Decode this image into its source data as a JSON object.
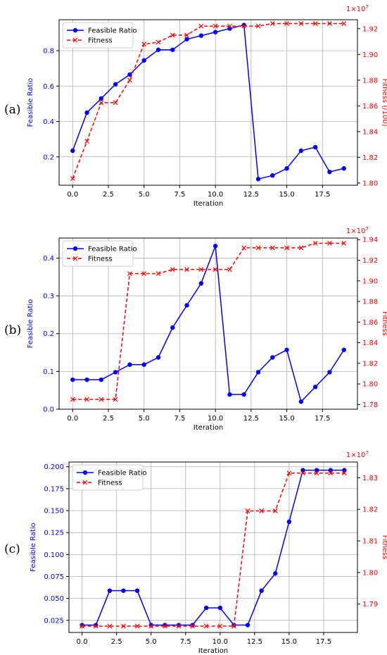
{
  "colors": {
    "left": "#0000ff",
    "right": "#ff0000",
    "grid": "#b0b0b0",
    "axis": "#000000"
  },
  "chart_data": [
    {
      "type": "line",
      "panel_label": "(a)",
      "xlabel": "Iteration",
      "ylabel_left": "Feasible Ratio",
      "ylabel_right": "Fitness (/100)",
      "right_axis_multiplier": "1e7",
      "x": [
        0,
        1,
        2,
        3,
        4,
        5,
        6,
        7,
        8,
        9,
        10,
        11,
        12,
        13,
        14,
        15,
        16,
        17,
        18,
        19
      ],
      "xlim": [
        -0.95,
        19.95
      ],
      "x_ticks": [
        0.0,
        2.5,
        5.0,
        7.5,
        10.0,
        12.5,
        15.0,
        17.5
      ],
      "x_tick_labels": [
        "0.0",
        "2.5",
        "5.0",
        "7.5",
        "10.0",
        "12.5",
        "15.0",
        "17.5"
      ],
      "left_ylim": [
        0.04,
        0.975
      ],
      "left_ticks": [
        0.2,
        0.4,
        0.6,
        0.8
      ],
      "left_tick_labels": [
        "0.2",
        "0.4",
        "0.6",
        "0.8"
      ],
      "right_ylim": [
        1.7983,
        1.927
      ],
      "right_ticks": [
        1.8,
        1.82,
        1.84,
        1.86,
        1.88,
        1.9,
        1.92
      ],
      "right_tick_labels": [
        "1.80",
        "1.82",
        "1.84",
        "1.86",
        "1.88",
        "1.90",
        "1.92"
      ],
      "legend": [
        "Feasible Ratio",
        "Fitness"
      ],
      "legend_position": "top-left",
      "grid": true,
      "series": [
        {
          "name": "Feasible Ratio",
          "axis": "left",
          "style": "solid",
          "marker": "circle",
          "values": [
            0.235,
            0.45,
            0.53,
            0.61,
            0.665,
            0.745,
            0.805,
            0.805,
            0.865,
            0.885,
            0.905,
            0.925,
            0.945,
            0.075,
            0.095,
            0.135,
            0.235,
            0.255,
            0.115,
            0.135
          ]
        },
        {
          "name": "Fitness",
          "axis": "right",
          "style": "dashed",
          "marker": "x",
          "values": [
            1.8035,
            1.8325,
            1.8625,
            1.8625,
            1.88,
            1.908,
            1.9095,
            1.915,
            1.915,
            1.922,
            1.922,
            1.922,
            1.922,
            1.922,
            1.924,
            1.924,
            1.924,
            1.924,
            1.924,
            1.924
          ]
        }
      ]
    },
    {
      "type": "line",
      "panel_label": "(b)",
      "xlabel": "Iteration",
      "ylabel_left": "Feasible Ratio",
      "ylabel_right": "Fitness",
      "right_axis_multiplier": "1e7",
      "x": [
        0,
        1,
        2,
        3,
        4,
        5,
        6,
        7,
        8,
        9,
        10,
        11,
        12,
        13,
        14,
        15,
        16,
        17,
        18,
        19
      ],
      "xlim": [
        -0.95,
        19.95
      ],
      "x_ticks": [
        0.0,
        2.5,
        5.0,
        7.5,
        10.0,
        12.5,
        15.0,
        17.5
      ],
      "x_tick_labels": [
        "0.0",
        "2.5",
        "5.0",
        "7.5",
        "10.0",
        "12.5",
        "15.0",
        "17.5"
      ],
      "left_ylim": [
        0.0,
        0.453
      ],
      "left_ticks": [
        0.0,
        0.1,
        0.2,
        0.3,
        0.4
      ],
      "left_tick_labels": [
        "0.0",
        "0.1",
        "0.2",
        "0.3",
        "0.4"
      ],
      "right_ylim": [
        1.7755,
        1.9415
      ],
      "right_ticks": [
        1.78,
        1.8,
        1.82,
        1.84,
        1.86,
        1.88,
        1.9,
        1.92,
        1.94
      ],
      "right_tick_labels": [
        "1.78",
        "1.80",
        "1.82",
        "1.84",
        "1.86",
        "1.88",
        "1.90",
        "1.92",
        "1.94"
      ],
      "legend": [
        "Feasible Ratio",
        "Fitness"
      ],
      "legend_position": "top-left",
      "grid": true,
      "series": [
        {
          "name": "Feasible Ratio",
          "axis": "left",
          "style": "solid",
          "marker": "circle",
          "values": [
            0.078,
            0.078,
            0.078,
            0.098,
            0.118,
            0.118,
            0.137,
            0.216,
            0.275,
            0.333,
            0.432,
            0.039,
            0.039,
            0.098,
            0.137,
            0.157,
            0.02,
            0.059,
            0.098,
            0.157
          ]
        },
        {
          "name": "Fitness",
          "axis": "right",
          "style": "dashed",
          "marker": "x",
          "values": [
            1.785,
            1.785,
            1.785,
            1.785,
            1.907,
            1.907,
            1.907,
            1.911,
            1.911,
            1.911,
            1.911,
            1.911,
            1.932,
            1.932,
            1.932,
            1.932,
            1.932,
            1.9365,
            1.9365,
            1.9365
          ]
        }
      ]
    },
    {
      "type": "line",
      "panel_label": "(c)",
      "xlabel": "Iteration",
      "ylabel_left": "Feasible Ratio",
      "ylabel_right": "Fitness",
      "right_axis_multiplier": "1e7",
      "x": [
        0,
        1,
        2,
        3,
        4,
        5,
        6,
        7,
        8,
        9,
        10,
        11,
        12,
        13,
        14,
        15,
        16,
        17,
        18,
        19
      ],
      "xlim": [
        -0.95,
        19.95
      ],
      "x_ticks": [
        0.0,
        2.5,
        5.0,
        7.5,
        10.0,
        12.5,
        15.0,
        17.5
      ],
      "x_tick_labels": [
        "0.0",
        "2.5",
        "5.0",
        "7.5",
        "10.0",
        "12.5",
        "15.0",
        "17.5"
      ],
      "left_ylim": [
        0.0112,
        0.2054
      ],
      "left_ticks": [
        0.025,
        0.05,
        0.075,
        0.1,
        0.125,
        0.15,
        0.175,
        0.2
      ],
      "left_tick_labels": [
        "0.025",
        "0.050",
        "0.075",
        "0.100",
        "0.125",
        "0.150",
        "0.175",
        "0.200"
      ],
      "right_ylim": [
        1.781,
        1.835
      ],
      "right_ticks": [
        1.79,
        1.8,
        1.81,
        1.82,
        1.83
      ],
      "right_tick_labels": [
        "1.79",
        "1.80",
        "1.81",
        "1.82",
        "1.83"
      ],
      "legend": [
        "Feasible Ratio",
        "Fitness"
      ],
      "legend_position": "top-left",
      "grid": true,
      "series": [
        {
          "name": "Feasible Ratio",
          "axis": "left",
          "style": "solid",
          "marker": "circle",
          "values": [
            0.0196,
            0.0196,
            0.0588,
            0.0588,
            0.0588,
            0.0196,
            0.0196,
            0.0196,
            0.0196,
            0.0392,
            0.0392,
            0.0196,
            0.0196,
            0.0588,
            0.0784,
            0.1373,
            0.1961,
            0.1961,
            0.1961,
            0.1961
          ]
        },
        {
          "name": "Fitness",
          "axis": "right",
          "style": "dashed",
          "marker": "x",
          "values": [
            1.783,
            1.783,
            1.783,
            1.783,
            1.783,
            1.783,
            1.783,
            1.783,
            1.783,
            1.783,
            1.783,
            1.783,
            1.8195,
            1.8195,
            1.8195,
            1.8315,
            1.8315,
            1.8315,
            1.8315,
            1.8315
          ]
        }
      ]
    }
  ]
}
